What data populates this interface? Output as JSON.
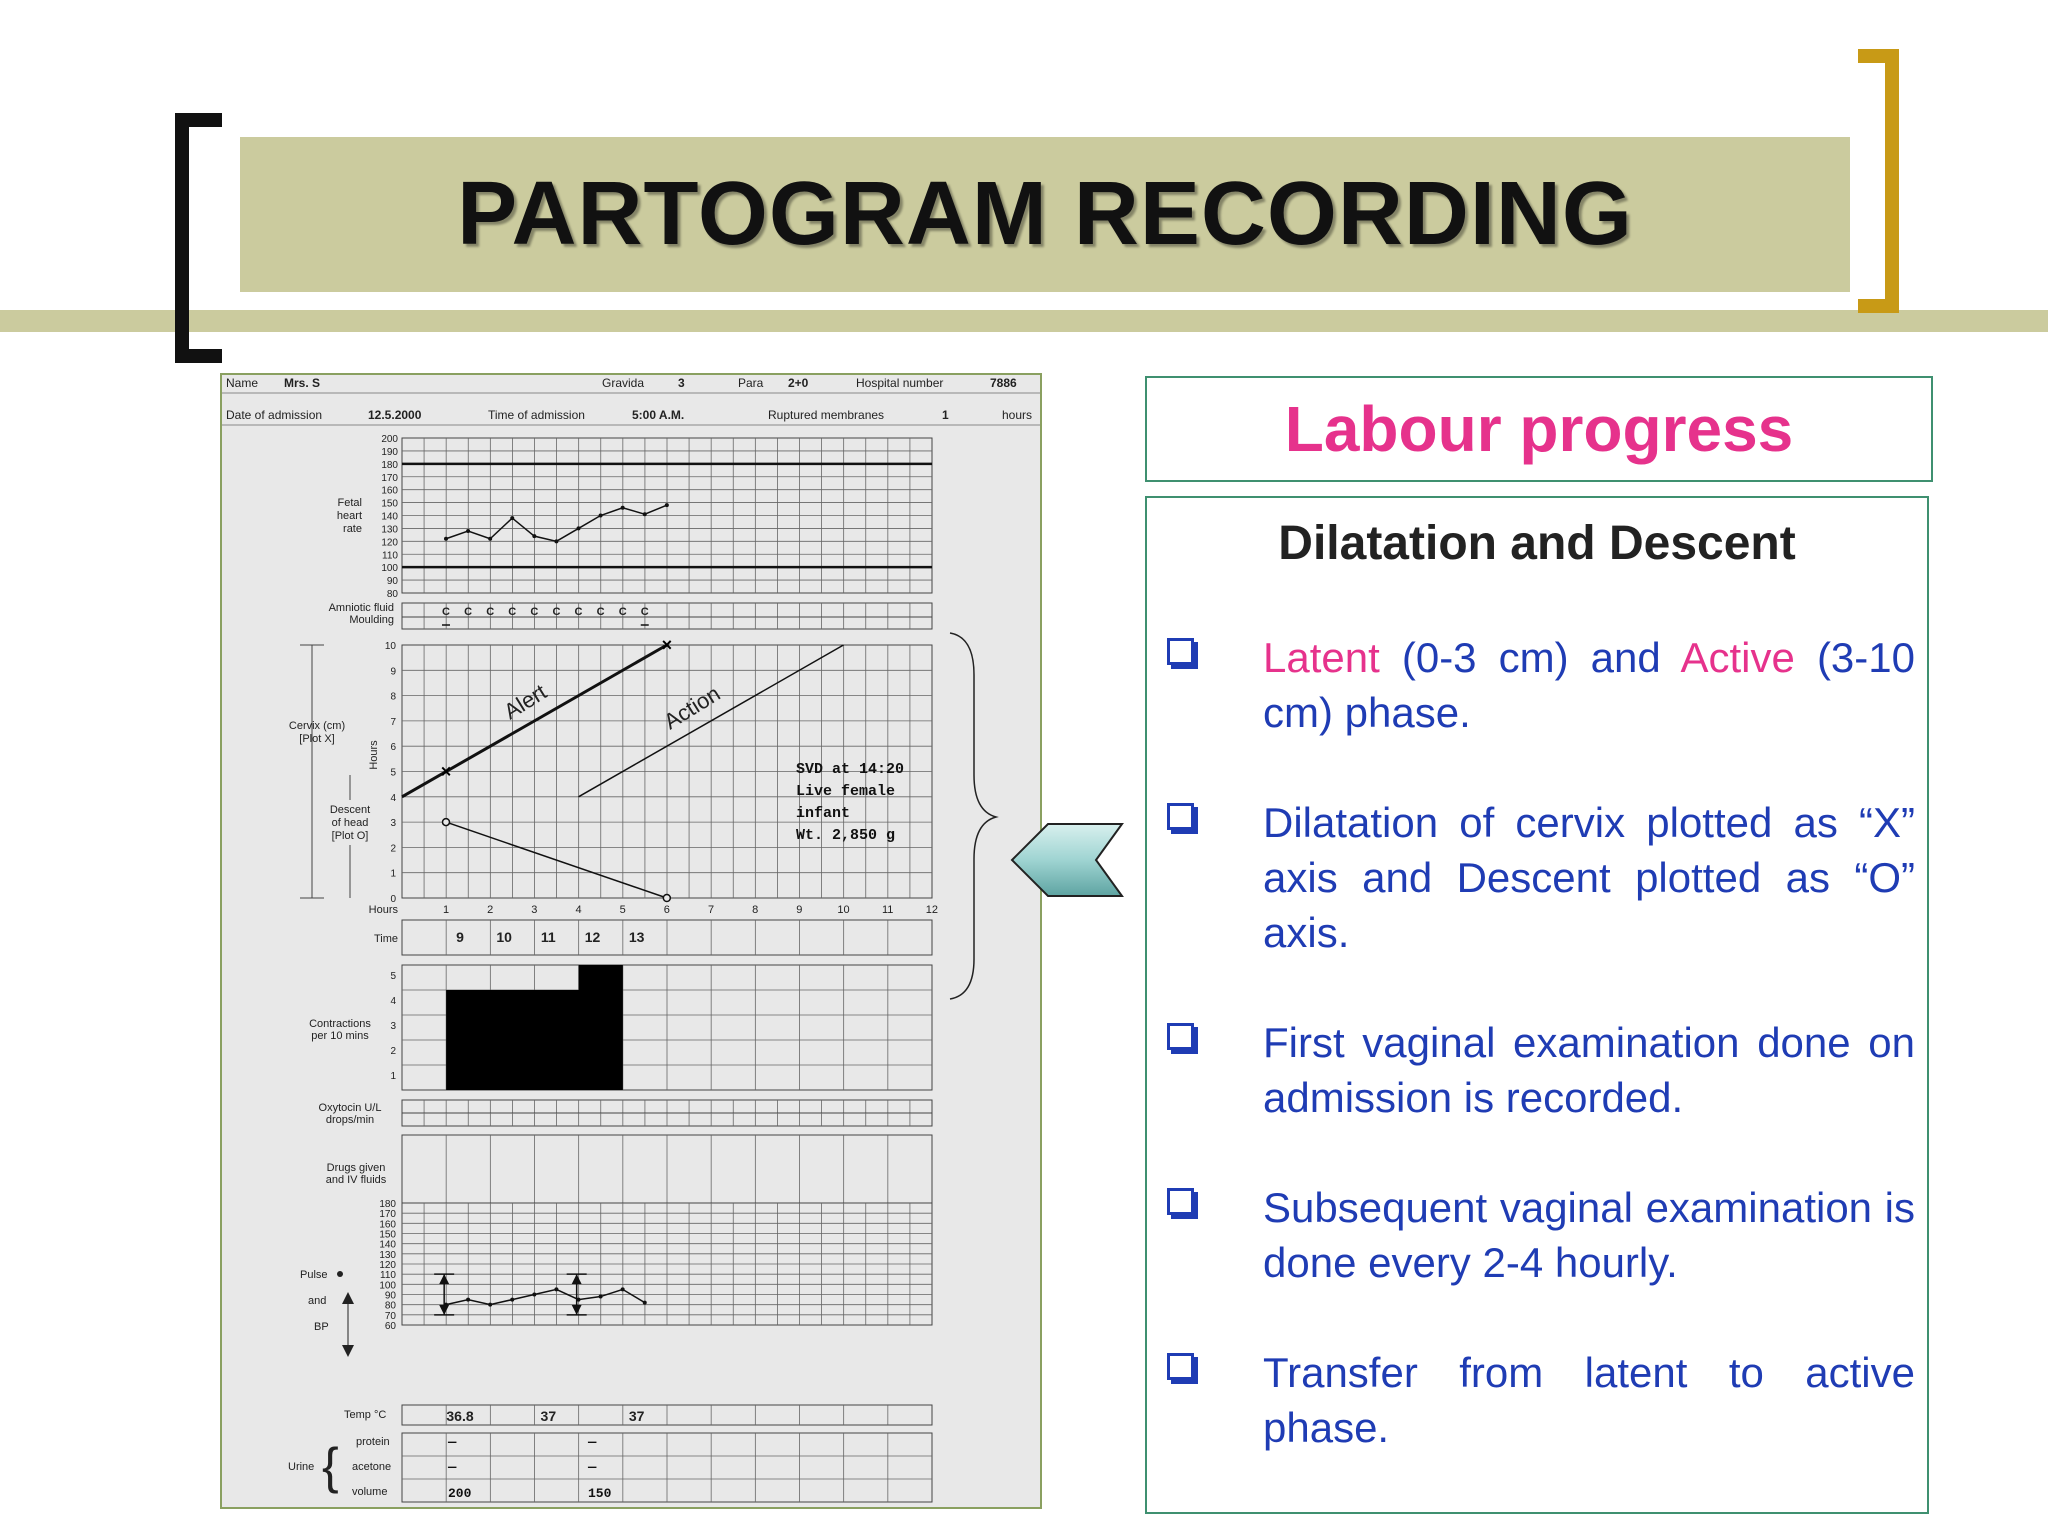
{
  "slide": {
    "title": "PARTOGRAM RECORDING",
    "colors": {
      "title_band": "#cbcb9e",
      "bracket_left": "#111111",
      "bracket_right": "#c89a16",
      "pink": "#e6328c",
      "blue": "#1f3cb4",
      "box_border": "#3f9070"
    }
  },
  "partogram": {
    "header": {
      "name_label": "Name",
      "name_value": "Mrs. S",
      "gravida_label": "Gravida",
      "gravida_value": "3",
      "para_label": "Para",
      "para_value": "2+0",
      "hospital_label": "Hospital number",
      "hospital_value": "7886",
      "date_label": "Date of admission",
      "date_value": "12.5.2000",
      "time_label": "Time of admission",
      "time_value": "5:00 A.M.",
      "ruptured_label": "Ruptured membranes",
      "ruptured_value": "1",
      "ruptured_unit": "hours"
    },
    "fhr": {
      "label": [
        "Fetal",
        "heart",
        "rate"
      ],
      "ticks": [
        200,
        190,
        180,
        170,
        160,
        150,
        140,
        130,
        120,
        110,
        100,
        90,
        80
      ],
      "values": [
        122,
        128,
        122,
        138,
        124,
        120,
        130,
        140,
        146,
        141,
        148
      ]
    },
    "amniotic": {
      "label1": "Amniotic fluid",
      "label2": "Moulding",
      "values": [
        "C",
        "C",
        "C",
        "C",
        "C",
        "C",
        "C",
        "C",
        "C",
        "C"
      ]
    },
    "cervix": {
      "label_cervix": [
        "Cervix (cm)",
        "[Plot X]"
      ],
      "label_descent": [
        "Descent",
        "of head",
        "[Plot O]"
      ],
      "hours_label": "Hours",
      "yticks": [
        10,
        9,
        8,
        7,
        6,
        5,
        4,
        3,
        2,
        1,
        0
      ],
      "alert": "Alert",
      "action": "Action",
      "x_points": [
        [
          1,
          5
        ],
        [
          6,
          10
        ]
      ],
      "o_points": [
        [
          1,
          3
        ],
        [
          6,
          0
        ]
      ],
      "note": [
        "SVD at 14:20",
        "Live female",
        "infant",
        "Wt. 2,850 g"
      ]
    },
    "hours_row": {
      "label": "Hours",
      "values": [
        "1",
        "2",
        "3",
        "4",
        "5",
        "6",
        "7",
        "8",
        "9",
        "10",
        "11",
        "12"
      ]
    },
    "time_row": {
      "label": "Time",
      "values": [
        "9",
        "10",
        "11",
        "12",
        "13"
      ]
    },
    "contractions": {
      "label": [
        "Contractions",
        "per 10 mins"
      ],
      "yticks": [
        5,
        4,
        3,
        2,
        1
      ]
    },
    "oxytocin": {
      "label": [
        "Oxytocin U/L",
        "drops/min"
      ]
    },
    "drugs": {
      "label": [
        "Drugs given",
        "and IV fluids"
      ]
    },
    "pulse": {
      "label_pulse": "Pulse",
      "label_and": "and",
      "label_bp": "BP",
      "ticks": [
        180,
        170,
        160,
        150,
        140,
        130,
        120,
        110,
        100,
        90,
        80,
        70,
        60
      ],
      "values": [
        80,
        85,
        80,
        85,
        90,
        95,
        85,
        88,
        95,
        82
      ]
    },
    "temp": {
      "label": "Temp °C",
      "values": [
        "36.8",
        "37",
        "37"
      ]
    },
    "urine": {
      "label": "Urine",
      "protein": "protein",
      "acetone": "acetone",
      "volume": "volume",
      "dash": "—",
      "vol1": "200",
      "vol2": "150"
    }
  },
  "labour_progress": {
    "title": "Labour progress",
    "subtitle": "Dilatation and Descent",
    "b1_latent": "Latent",
    "b1_mid": " (0-3 cm) and ",
    "b1_active": "Active",
    "b1_end": " (3-10 cm) phase.",
    "b2": "Dilatation of cervix plotted as “X” axis and Descent plotted as “O” axis.",
    "b3": "First vaginal examination done on admission is recorded.",
    "b4": "Subsequent vaginal examination is done every 2-4 hourly.",
    "b5": "Transfer from latent to active phase."
  }
}
